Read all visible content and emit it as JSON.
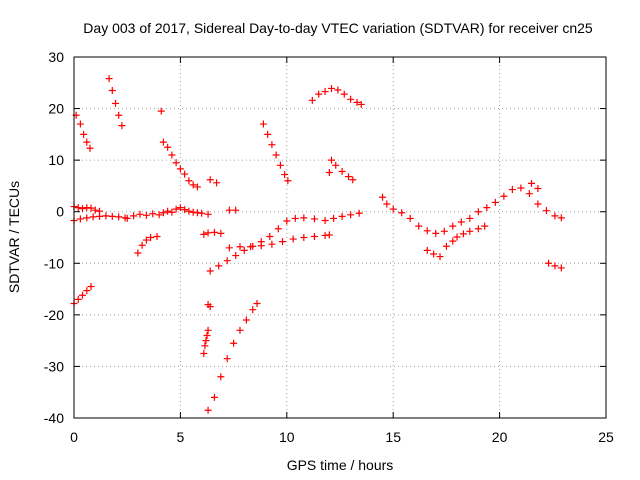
{
  "chart_data": {
    "type": "scatter",
    "title": "Day 003 of 2017, Sidereal Day-to-day VTEC variation (SDTVAR) for receiver cn25",
    "xlabel": "GPS time / hours",
    "ylabel": "SDTVAR / TECUs",
    "xlim": [
      0,
      25
    ],
    "ylim": [
      -40,
      30
    ],
    "xticks": [
      "0",
      "5",
      "10",
      "15",
      "20",
      "25"
    ],
    "yticks": [
      "-40",
      "-30",
      "-20",
      "-10",
      "0",
      "10",
      "20",
      "30"
    ],
    "grid": true,
    "marker": "+",
    "color": "#ff0000",
    "series": [
      {
        "points": [
          [
            0.0,
            1.0
          ],
          [
            0.2,
            0.8
          ],
          [
            0.4,
            0.6
          ],
          [
            0.6,
            0.8
          ],
          [
            0.8,
            0.7
          ],
          [
            1.0,
            0.3
          ],
          [
            1.2,
            0.1
          ],
          [
            0.0,
            -1.7
          ],
          [
            0.3,
            -1.4
          ],
          [
            0.6,
            -1.2
          ],
          [
            0.9,
            -1.0
          ],
          [
            1.2,
            -0.9
          ],
          [
            1.5,
            -0.8
          ],
          [
            1.8,
            -0.9
          ],
          [
            2.1,
            -1.0
          ],
          [
            2.4,
            -1.2
          ],
          [
            2.5,
            -1.3
          ],
          [
            2.8,
            -0.8
          ],
          [
            3.1,
            -0.5
          ],
          [
            3.4,
            -0.7
          ],
          [
            3.7,
            -0.4
          ],
          [
            4.0,
            -0.6
          ],
          [
            4.2,
            -0.2
          ],
          [
            4.4,
            0.1
          ],
          [
            4.6,
            -0.1
          ],
          [
            4.8,
            0.5
          ],
          [
            5.0,
            0.8
          ],
          [
            5.2,
            0.4
          ],
          [
            5.4,
            0.1
          ],
          [
            5.6,
            -0.1
          ],
          [
            5.8,
            -0.2
          ],
          [
            6.0,
            -0.3
          ],
          [
            6.3,
            -0.5
          ],
          [
            0.1,
            18.7
          ],
          [
            0.3,
            17.0
          ],
          [
            0.45,
            15.0
          ],
          [
            0.6,
            13.5
          ],
          [
            0.75,
            12.3
          ],
          [
            1.65,
            25.8
          ],
          [
            1.8,
            23.5
          ],
          [
            1.95,
            21.0
          ],
          [
            2.1,
            18.7
          ],
          [
            2.25,
            16.7
          ],
          [
            0.0,
            -17.8
          ],
          [
            0.2,
            -17.0
          ],
          [
            0.4,
            -16.2
          ],
          [
            0.6,
            -15.3
          ],
          [
            0.8,
            -14.5
          ],
          [
            3.0,
            -8.0
          ],
          [
            3.2,
            -6.5
          ],
          [
            3.4,
            -5.5
          ],
          [
            3.6,
            -5.0
          ],
          [
            3.9,
            -4.8
          ],
          [
            4.1,
            19.5
          ],
          [
            4.2,
            13.5
          ],
          [
            4.4,
            12.5
          ],
          [
            4.6,
            11.0
          ],
          [
            4.8,
            9.5
          ],
          [
            5.0,
            8.3
          ],
          [
            5.2,
            7.3
          ],
          [
            5.4,
            6.0
          ],
          [
            5.6,
            5.2
          ],
          [
            5.8,
            4.8
          ],
          [
            6.4,
            6.2
          ],
          [
            6.7,
            5.6
          ],
          [
            6.1,
            -4.4
          ],
          [
            6.3,
            -4.1
          ],
          [
            6.6,
            -4.0
          ],
          [
            6.9,
            -4.2
          ],
          [
            7.3,
            0.3
          ],
          [
            7.6,
            0.3
          ],
          [
            6.1,
            -27.5
          ],
          [
            6.15,
            -26.0
          ],
          [
            6.2,
            -25.0
          ],
          [
            6.25,
            -24.0
          ],
          [
            6.3,
            -23.0
          ],
          [
            6.3,
            -18.0
          ],
          [
            6.4,
            -18.4
          ],
          [
            6.3,
            -38.5
          ],
          [
            6.6,
            -36.0
          ],
          [
            6.9,
            -32.0
          ],
          [
            7.2,
            -28.5
          ],
          [
            7.5,
            -25.5
          ],
          [
            7.8,
            -23.0
          ],
          [
            8.1,
            -21.0
          ],
          [
            8.4,
            -19.0
          ],
          [
            8.6,
            -17.8
          ],
          [
            6.4,
            -11.5
          ],
          [
            6.8,
            -10.5
          ],
          [
            7.2,
            -9.5
          ],
          [
            7.6,
            -8.5
          ],
          [
            8.0,
            -7.5
          ],
          [
            8.4,
            -6.7
          ],
          [
            8.8,
            -5.8
          ],
          [
            9.2,
            -4.8
          ],
          [
            9.6,
            -3.3
          ],
          [
            10.0,
            -1.8
          ],
          [
            10.4,
            -1.3
          ],
          [
            10.8,
            -1.2
          ],
          [
            11.3,
            -1.4
          ],
          [
            11.8,
            -1.7
          ],
          [
            12.2,
            -1.3
          ],
          [
            12.6,
            -0.9
          ],
          [
            13.0,
            -0.6
          ],
          [
            13.4,
            -0.3
          ],
          [
            7.3,
            -7.0
          ],
          [
            7.8,
            -6.8
          ],
          [
            8.3,
            -6.8
          ],
          [
            8.8,
            -6.6
          ],
          [
            9.3,
            -6.3
          ],
          [
            9.8,
            -5.8
          ],
          [
            10.3,
            -5.3
          ],
          [
            10.8,
            -5.0
          ],
          [
            11.3,
            -4.8
          ],
          [
            11.8,
            -4.6
          ],
          [
            12.0,
            -4.5
          ],
          [
            8.9,
            17.0
          ],
          [
            9.1,
            15.0
          ],
          [
            9.3,
            13.0
          ],
          [
            9.5,
            11.0
          ],
          [
            9.7,
            9.0
          ],
          [
            9.9,
            7.2
          ],
          [
            10.05,
            6.0
          ],
          [
            11.2,
            21.6
          ],
          [
            11.5,
            22.8
          ],
          [
            11.8,
            23.3
          ],
          [
            12.1,
            23.9
          ],
          [
            12.4,
            23.6
          ],
          [
            12.7,
            22.8
          ],
          [
            13.0,
            21.8
          ],
          [
            13.3,
            21.2
          ],
          [
            13.5,
            20.8
          ],
          [
            12.1,
            10.0
          ],
          [
            12.3,
            9.0
          ],
          [
            12.6,
            7.8
          ],
          [
            12.9,
            6.8
          ],
          [
            13.1,
            6.2
          ],
          [
            12.0,
            7.6
          ],
          [
            14.5,
            2.8
          ],
          [
            14.7,
            1.5
          ],
          [
            15.0,
            0.5
          ],
          [
            15.4,
            -0.2
          ],
          [
            15.8,
            -1.3
          ],
          [
            16.2,
            -2.8
          ],
          [
            16.6,
            -3.7
          ],
          [
            17.0,
            -4.2
          ],
          [
            17.4,
            -3.8
          ],
          [
            17.8,
            -2.8
          ],
          [
            18.2,
            -2.0
          ],
          [
            18.6,
            -1.3
          ],
          [
            19.0,
            0.0
          ],
          [
            19.4,
            0.8
          ],
          [
            19.8,
            1.8
          ],
          [
            20.2,
            3.0
          ],
          [
            20.6,
            4.3
          ],
          [
            21.0,
            4.6
          ],
          [
            21.4,
            3.5
          ],
          [
            21.8,
            1.5
          ],
          [
            22.2,
            0.2
          ],
          [
            22.6,
            -0.8
          ],
          [
            22.9,
            -1.2
          ],
          [
            16.6,
            -7.5
          ],
          [
            16.9,
            -8.2
          ],
          [
            17.2,
            -8.7
          ],
          [
            17.5,
            -6.7
          ],
          [
            17.8,
            -5.7
          ],
          [
            18.0,
            -4.9
          ],
          [
            18.3,
            -4.3
          ],
          [
            18.6,
            -3.8
          ],
          [
            19.0,
            -3.3
          ],
          [
            19.3,
            -2.8
          ],
          [
            21.5,
            5.5
          ],
          [
            21.8,
            4.5
          ],
          [
            22.3,
            -10.0
          ],
          [
            22.6,
            -10.5
          ],
          [
            22.9,
            -10.9
          ]
        ]
      }
    ]
  }
}
